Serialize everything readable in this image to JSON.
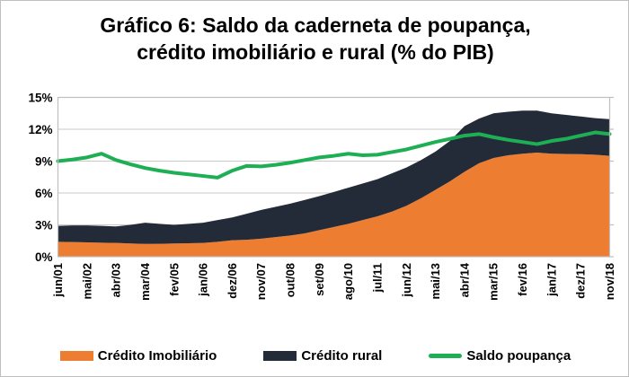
{
  "figure": {
    "title_line1": "Gráfico 6: Saldo da caderneta de poupança,",
    "title_line2": "crédito imobiliário e rural (% do PIB)"
  },
  "legend": [
    {
      "label": "Crédito Imobiliário",
      "color": "#ED7D31",
      "type": "area"
    },
    {
      "label": "Crédito rural",
      "color": "#232B38",
      "type": "area"
    },
    {
      "label": "Saldo poupança",
      "color": "#1EAF55",
      "type": "line"
    }
  ],
  "colors": {
    "credito_imobiliario": "#ED7D31",
    "credito_rural": "#232B38",
    "saldo_poupanca": "#1EAF55",
    "gridline": "#C9C9C9",
    "plot_border": "#BFBFBF",
    "text": "#000000",
    "background": "#FFFFFF"
  },
  "chart_data": {
    "type": "area",
    "stacked": true,
    "title": "Gráfico 6: Saldo da caderneta de poupança, crédito imobiliário e rural (% do PIB)",
    "xlabel": "",
    "ylabel": "",
    "ylim": [
      0,
      15
    ],
    "y_ticks": [
      "0%",
      "3%",
      "6%",
      "9%",
      "12%",
      "15%"
    ],
    "y_tick_values": [
      0,
      3,
      6,
      9,
      12,
      15
    ],
    "grid": true,
    "legend_position": "bottom",
    "categories": [
      "jun/01",
      "mai/02",
      "abr/03",
      "mar/04",
      "fev/05",
      "jan/06",
      "dez/06",
      "nov/07",
      "out/08",
      "set/09",
      "ago/10",
      "jul/11",
      "jun/12",
      "mai/13",
      "abr/14",
      "mar/15",
      "fev/16",
      "jan/17",
      "dez/17",
      "nov/18"
    ],
    "sampling": "39 samples: one at each category tick plus one midpoint between ticks; units are % of PIB; stacked areas give each band's own thickness",
    "series": [
      {
        "name": "Crédito Imobiliário",
        "render": "area-stacked",
        "color": "#ED7D31",
        "values": [
          1.4,
          1.38,
          1.35,
          1.32,
          1.3,
          1.25,
          1.2,
          1.22,
          1.25,
          1.27,
          1.3,
          1.4,
          1.55,
          1.6,
          1.7,
          1.85,
          2.0,
          2.2,
          2.5,
          2.8,
          3.1,
          3.45,
          3.8,
          4.25,
          4.8,
          5.5,
          6.3,
          7.1,
          8.0,
          8.8,
          9.3,
          9.55,
          9.7,
          9.8,
          9.7,
          9.68,
          9.65,
          9.6,
          9.5
        ]
      },
      {
        "name": "Crédito rural",
        "render": "area-stacked",
        "color": "#232B38",
        "values": [
          1.5,
          1.57,
          1.6,
          1.58,
          1.55,
          1.75,
          2.0,
          1.88,
          1.75,
          1.83,
          1.9,
          2.05,
          2.15,
          2.45,
          2.7,
          2.85,
          3.0,
          3.15,
          3.2,
          3.3,
          3.4,
          3.45,
          3.5,
          3.6,
          3.6,
          3.6,
          3.6,
          3.8,
          4.3,
          4.2,
          4.2,
          4.1,
          4.05,
          3.95,
          3.8,
          3.67,
          3.55,
          3.45,
          3.45
        ]
      },
      {
        "name": "Saldo poupança",
        "render": "line",
        "color": "#1EAF55",
        "values": [
          9.0,
          9.15,
          9.35,
          9.7,
          9.1,
          8.7,
          8.35,
          8.1,
          7.9,
          7.75,
          7.6,
          7.45,
          8.1,
          8.55,
          8.5,
          8.65,
          8.85,
          9.1,
          9.35,
          9.5,
          9.7,
          9.55,
          9.6,
          9.85,
          10.1,
          10.45,
          10.8,
          11.1,
          11.4,
          11.55,
          11.25,
          11.0,
          10.8,
          10.6,
          10.9,
          11.1,
          11.4,
          11.7,
          11.55
        ]
      }
    ]
  }
}
